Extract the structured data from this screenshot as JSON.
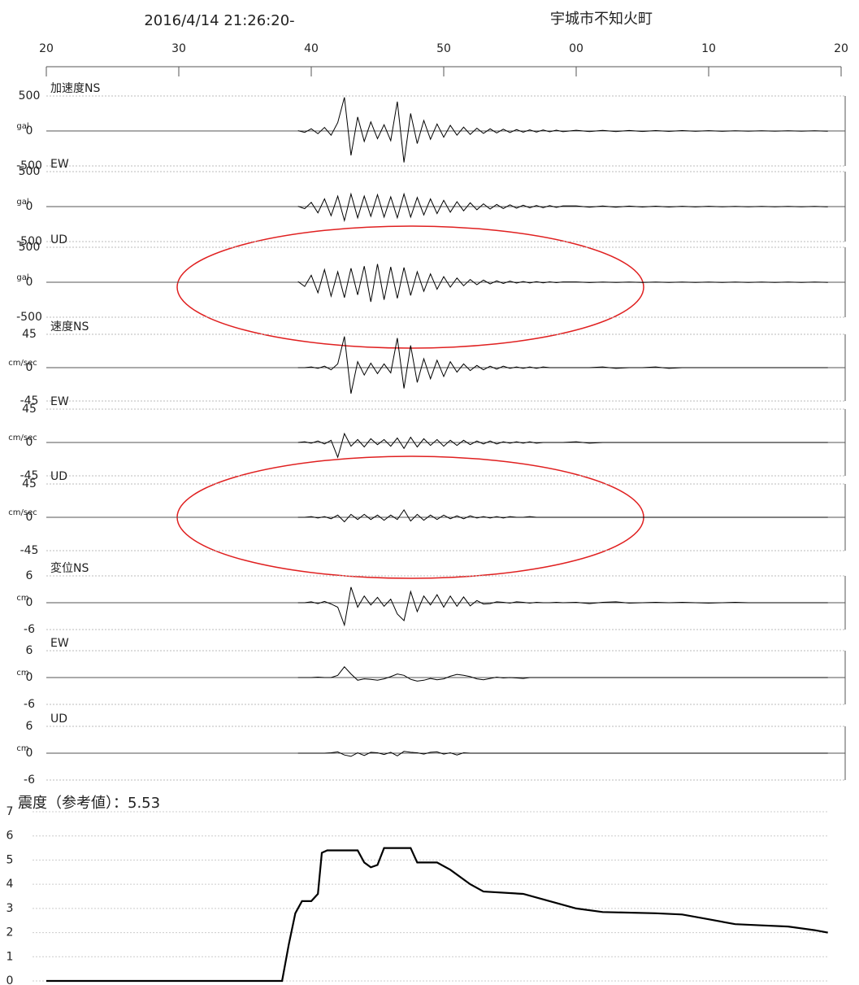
{
  "header": {
    "datetime": "2016/4/14 21:26:20-",
    "location": "宇城市不知火町"
  },
  "time_axis": {
    "xlim": [
      20,
      80
    ],
    "xticks": [
      20,
      30,
      40,
      50,
      {
        "value": 60,
        "label": "00"
      },
      {
        "value": 70,
        "label": "10"
      },
      {
        "value": 80,
        "label": "20"
      }
    ],
    "x": [
      39,
      39.5,
      40,
      40.5,
      41,
      41.5,
      42,
      42.5,
      43,
      43.5,
      44,
      44.5,
      45,
      45.5,
      46,
      46.5,
      47,
      47.5,
      48,
      48.5,
      49,
      49.5,
      50,
      50.5,
      51,
      51.5,
      52,
      52.5,
      53,
      53.5,
      54,
      54.5,
      55,
      55.5,
      56,
      56.5,
      57,
      57.5,
      58,
      58.5,
      59,
      60,
      61,
      62,
      63,
      64,
      65,
      66,
      67,
      68,
      69,
      70,
      71,
      72,
      73,
      74,
      75,
      76,
      77,
      78,
      79
    ]
  },
  "chart_data": [
    {
      "type": "line",
      "title": "加速度NS",
      "unit": "gal",
      "ylim": [
        -500,
        500
      ],
      "yticks": [
        -500,
        0,
        500
      ],
      "color": "#000000",
      "values": [
        5,
        -20,
        30,
        -40,
        50,
        -60,
        120,
        480,
        -350,
        200,
        -150,
        130,
        -110,
        90,
        -140,
        420,
        -450,
        250,
        -180,
        150,
        -120,
        100,
        -90,
        80,
        -60,
        55,
        -50,
        40,
        -35,
        30,
        -28,
        25,
        -22,
        20,
        -18,
        16,
        -15,
        14,
        -12,
        12,
        -10,
        10,
        -9,
        8,
        -8,
        7,
        -7,
        6,
        -6,
        6,
        -5,
        5,
        -5,
        4,
        -4,
        4,
        -4,
        3,
        -3,
        3,
        -3
      ]
    },
    {
      "type": "line",
      "title": "EW",
      "unit": "gal",
      "ylim": [
        -500,
        500
      ],
      "yticks": [
        -500,
        0,
        500
      ],
      "color": "#000000",
      "values": [
        5,
        -30,
        60,
        -90,
        110,
        -130,
        150,
        -200,
        180,
        -160,
        150,
        -140,
        170,
        -150,
        140,
        -160,
        180,
        -150,
        130,
        -120,
        110,
        -100,
        90,
        -80,
        70,
        -60,
        55,
        -45,
        40,
        -35,
        30,
        -28,
        25,
        -22,
        20,
        -18,
        16,
        -15,
        14,
        -12,
        10,
        10,
        -9,
        8,
        -8,
        7,
        -6,
        6,
        -6,
        5,
        -5,
        5,
        -4,
        4,
        -4,
        4,
        -3,
        3,
        -3,
        3,
        -3
      ]
    },
    {
      "type": "line",
      "title": "UD",
      "unit": "gal",
      "ylim": [
        -500,
        500
      ],
      "yticks": [
        -500,
        0,
        500
      ],
      "color": "#000000",
      "values": [
        10,
        -60,
        100,
        -150,
        180,
        -200,
        150,
        -220,
        200,
        -180,
        230,
        -280,
        260,
        -250,
        220,
        -230,
        210,
        -190,
        150,
        -130,
        120,
        -100,
        80,
        -70,
        60,
        -50,
        40,
        -35,
        30,
        -25,
        20,
        -18,
        15,
        -12,
        10,
        -10,
        8,
        -8,
        6,
        -6,
        5,
        5,
        -5,
        4,
        -4,
        4,
        -4,
        3,
        -3,
        3,
        -3,
        3,
        -3,
        3,
        -3,
        2,
        -2,
        2,
        -2,
        2,
        -2
      ]
    },
    {
      "type": "line",
      "title": "速度NS",
      "unit": "cm/sec",
      "ylim": [
        -45,
        45
      ],
      "yticks": [
        -45,
        0,
        45
      ],
      "color": "#000000",
      "values": [
        0,
        0,
        1,
        -1,
        2,
        -3,
        5,
        42,
        -35,
        8,
        -10,
        6,
        -8,
        5,
        -7,
        40,
        -28,
        30,
        -20,
        12,
        -15,
        10,
        -12,
        8,
        -6,
        5,
        -4,
        3,
        -3,
        2,
        -2,
        2,
        -1,
        1,
        -1,
        1,
        -1,
        1,
        0,
        0,
        0,
        0,
        0,
        1,
        -1,
        0,
        0,
        1,
        -1,
        0,
        0,
        0,
        0,
        0,
        0,
        0,
        0,
        0,
        0,
        0,
        0
      ]
    },
    {
      "type": "line",
      "title": "EW",
      "unit": "cm/sec",
      "ylim": [
        -45,
        45
      ],
      "yticks": [
        -45,
        0,
        45
      ],
      "color": "#000000",
      "values": [
        0,
        1,
        -1,
        2,
        -2,
        3,
        -20,
        12,
        -5,
        4,
        -6,
        5,
        -3,
        4,
        -5,
        6,
        -8,
        7,
        -6,
        5,
        -4,
        4,
        -5,
        3,
        -4,
        3,
        -3,
        2,
        -2,
        2,
        -2,
        1,
        -1,
        1,
        -1,
        1,
        -1,
        0,
        0,
        0,
        0,
        1,
        -1,
        0,
        0,
        0,
        0,
        0,
        0,
        0,
        0,
        0,
        0,
        0,
        0,
        0,
        0,
        0,
        0,
        0,
        0
      ]
    },
    {
      "type": "line",
      "title": "UD",
      "unit": "cm/sec",
      "ylim": [
        -45,
        45
      ],
      "yticks": [
        -45,
        0,
        45
      ],
      "color": "#000000",
      "values": [
        0,
        0,
        1,
        -1,
        1,
        -2,
        3,
        -6,
        4,
        -3,
        4,
        -3,
        3,
        -4,
        3,
        -3,
        10,
        -5,
        4,
        -4,
        3,
        -3,
        3,
        -2,
        2,
        -2,
        2,
        -1,
        1,
        -1,
        1,
        -1,
        1,
        0,
        0,
        1,
        0,
        0,
        0,
        0,
        0,
        0,
        0,
        0,
        0,
        0,
        0,
        0,
        0,
        0,
        0,
        0,
        0,
        0,
        0,
        0,
        0,
        0,
        0,
        0,
        0
      ]
    },
    {
      "type": "line",
      "title": "変位NS",
      "unit": "cm",
      "ylim": [
        -6,
        6
      ],
      "yticks": [
        -6,
        0,
        6
      ],
      "color": "#000000",
      "values": [
        0,
        0,
        0.2,
        -0.2,
        0.3,
        -0.3,
        -1,
        -5,
        3.5,
        -1,
        1.5,
        -0.5,
        1.2,
        -0.8,
        0.8,
        -2.5,
        -4,
        2.5,
        -2,
        1.5,
        -0.5,
        1.8,
        -1,
        1.5,
        -0.8,
        1.3,
        -0.7,
        0.5,
        -0.3,
        -0.2,
        0.2,
        0.1,
        -0.1,
        0.2,
        0.1,
        -0.1,
        0.1,
        0,
        0,
        0.1,
        0,
        0.1,
        -0.2,
        0.1,
        0.2,
        -0.1,
        0,
        0.1,
        0,
        0.1,
        0,
        -0.1,
        0,
        0.1,
        0,
        0,
        0,
        0,
        0,
        0,
        0
      ]
    },
    {
      "type": "line",
      "title": "EW",
      "unit": "cm",
      "ylim": [
        -6,
        6
      ],
      "yticks": [
        -6,
        0,
        6
      ],
      "color": "#000000",
      "values": [
        0,
        0,
        0,
        0.1,
        0,
        0,
        0.5,
        2.4,
        0.8,
        -0.6,
        -0.3,
        -0.4,
        -0.6,
        -0.3,
        0.2,
        0.8,
        0.5,
        -0.4,
        -0.8,
        -0.6,
        -0.2,
        -0.5,
        -0.3,
        0.3,
        0.7,
        0.5,
        0.2,
        -0.3,
        -0.5,
        -0.2,
        0.1,
        -0.1,
        0,
        -0.1,
        -0.2,
        0,
        0,
        0,
        0,
        0,
        0,
        0,
        0,
        0,
        0,
        0,
        0,
        0,
        0,
        0,
        0,
        0,
        0,
        0,
        0,
        0,
        0,
        0,
        0,
        0,
        0
      ]
    },
    {
      "type": "line",
      "title": "UD",
      "unit": "cm",
      "ylim": [
        -6,
        6
      ],
      "yticks": [
        -6,
        0,
        6
      ],
      "color": "#000000",
      "values": [
        0,
        0,
        0,
        0,
        0,
        0.1,
        0.3,
        -0.4,
        -0.7,
        0.1,
        -0.5,
        0.2,
        0.1,
        -0.3,
        0.2,
        -0.6,
        0.4,
        0.2,
        0.1,
        -0.2,
        0.2,
        0.3,
        -0.2,
        0.1,
        -0.4,
        0.1,
        0,
        0,
        0,
        0,
        0,
        0,
        0,
        0,
        0,
        0,
        0,
        0,
        0,
        0,
        0,
        0,
        0,
        0,
        0,
        0,
        0,
        0,
        0,
        0,
        0,
        0,
        0,
        0,
        0,
        0,
        0,
        0,
        0,
        0,
        0
      ]
    },
    {
      "type": "intensity",
      "title": "震度（参考値）：",
      "peak": 5.53,
      "ylim": [
        0,
        7
      ],
      "yticks": [
        0,
        1,
        2,
        3,
        4,
        5,
        6,
        7
      ],
      "grid": true,
      "color": "#000000",
      "x": [
        20,
        37.8,
        38.3,
        38.8,
        39.3,
        40,
        40.5,
        40.8,
        41.2,
        43.5,
        44,
        44.5,
        45,
        45.5,
        47.5,
        48,
        49.5,
        50.5,
        52,
        53,
        56,
        58,
        60,
        62,
        66,
        68,
        70,
        72,
        74,
        76,
        78,
        79
      ],
      "values": [
        0,
        0,
        1.5,
        2.8,
        3.3,
        3.3,
        3.6,
        5.3,
        5.4,
        5.4,
        4.9,
        4.7,
        4.8,
        5.5,
        5.5,
        4.9,
        4.9,
        4.6,
        4.0,
        3.7,
        3.6,
        3.3,
        3.0,
        2.85,
        2.8,
        2.75,
        2.55,
        2.35,
        2.3,
        2.25,
        2.1,
        2.0
      ]
    }
  ]
}
